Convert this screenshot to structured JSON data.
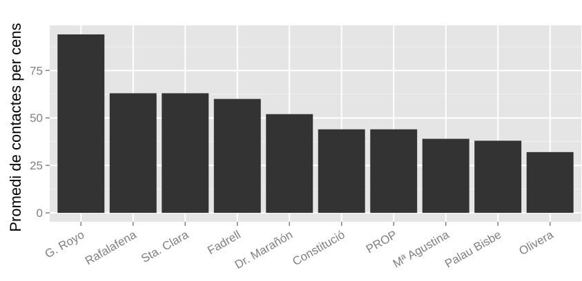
{
  "chart_data": {
    "type": "bar",
    "title": "",
    "xlabel": "",
    "ylabel": "Promedi de contactes per cens",
    "categories": [
      "G. Royo",
      "Rafalafena",
      "Sta. Clara",
      "Fadrell",
      "Dr. Marañón",
      "Constitució",
      "PROP",
      "Mª Agustina",
      "Palau Bisbe",
      "Olivera"
    ],
    "values": [
      94,
      63,
      63,
      60,
      52,
      44,
      44,
      39,
      38,
      32
    ],
    "ylim": [
      -4.7,
      98.7
    ],
    "yticks": [
      0,
      25,
      50,
      75
    ],
    "ytick_labels": [
      "0",
      "25",
      "50",
      "75"
    ],
    "grid": true,
    "legend": "none",
    "colors": {
      "bar": "#333333",
      "panel": "#e5e5e5",
      "grid_major": "#ffffff",
      "grid_minor": "#f2f2f2",
      "tick_text": "#7f7f7f",
      "tick_mark": "#7f7f7f"
    }
  }
}
